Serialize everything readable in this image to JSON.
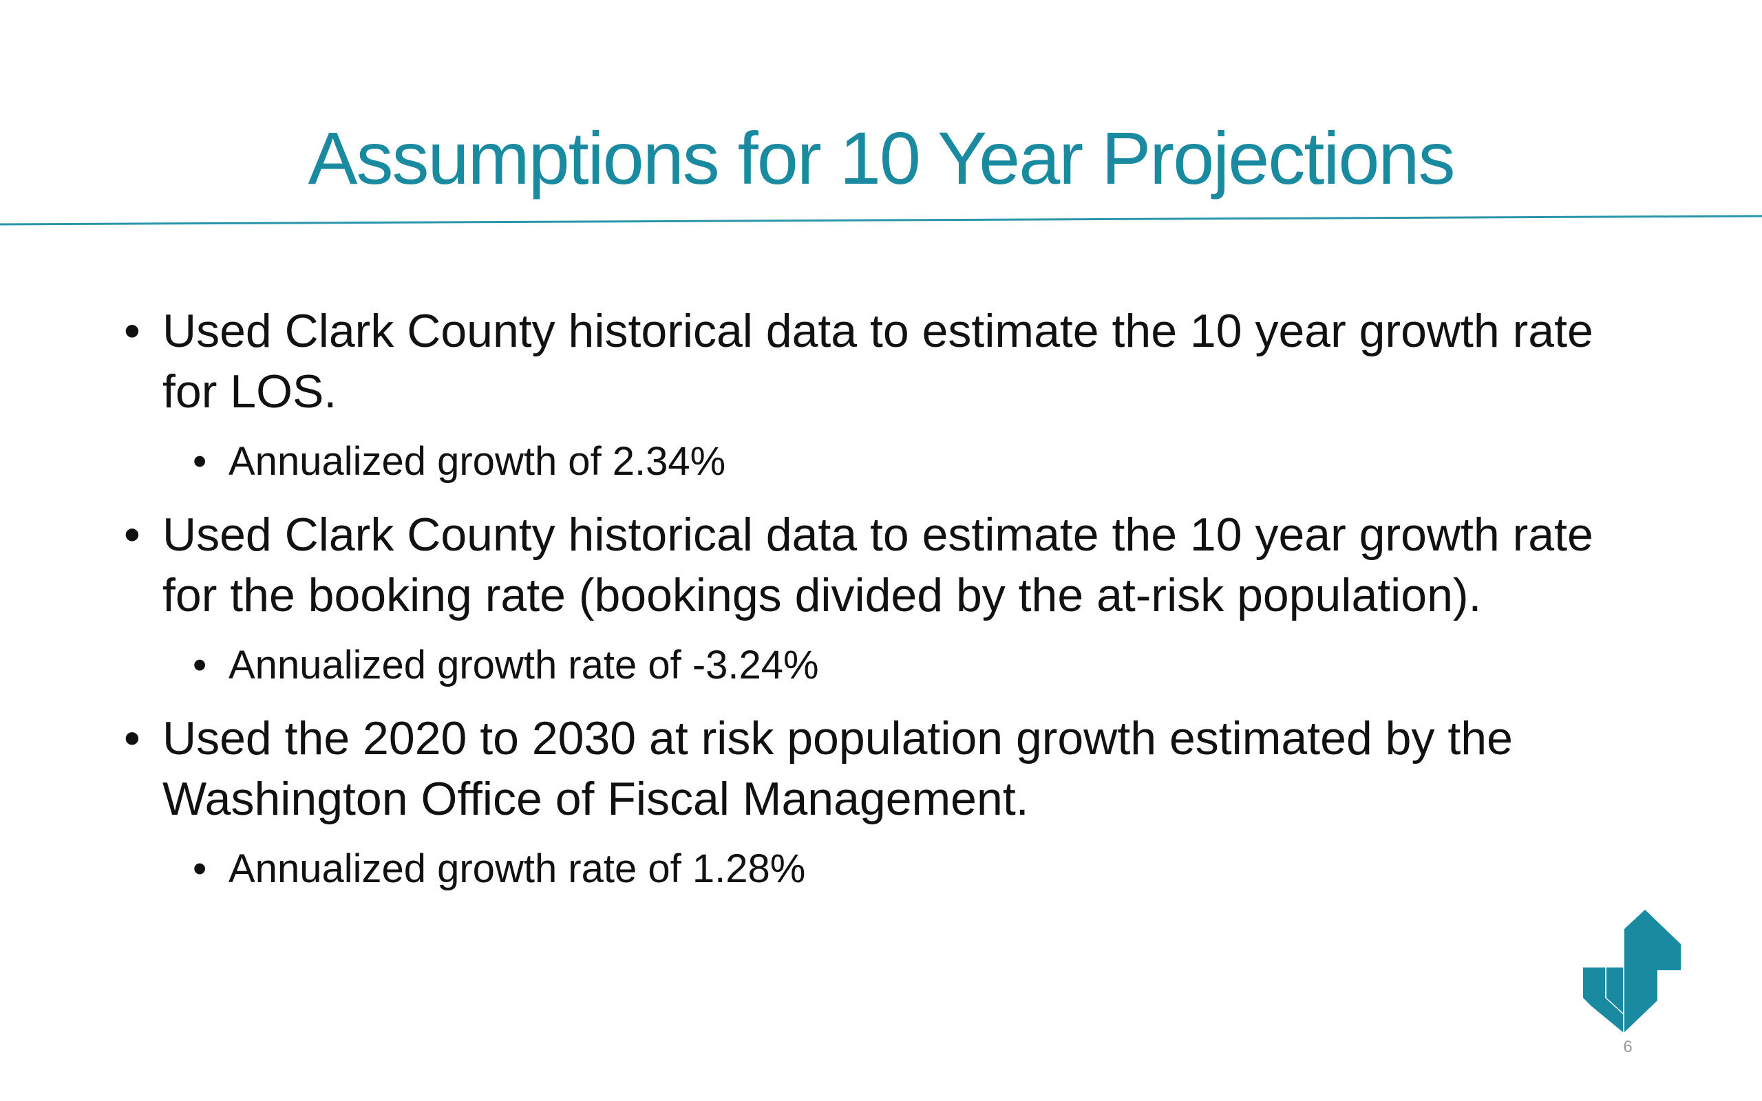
{
  "slide": {
    "title": "Assumptions for 10 Year Projections",
    "bullets": [
      {
        "text": "Used Clark County historical data to estimate the 10 year growth rate for LOS.",
        "sub": "Annualized growth of 2.34%"
      },
      {
        "text": "Used Clark County historical data to estimate the 10 year growth rate for the booking rate (bookings divided by the at-risk population).",
        "sub": "Annualized growth rate of -3.24%"
      },
      {
        "text": "Used the 2020 to 2030 at risk population growth estimated by the Washington Office of Fiscal Management.",
        "sub": "Annualized growth rate of 1.28%"
      }
    ],
    "page_number": "6"
  },
  "colors": {
    "accent": "#1a8aa0",
    "text": "#111111"
  },
  "icons": {
    "logo": "brand-logo-icon"
  }
}
